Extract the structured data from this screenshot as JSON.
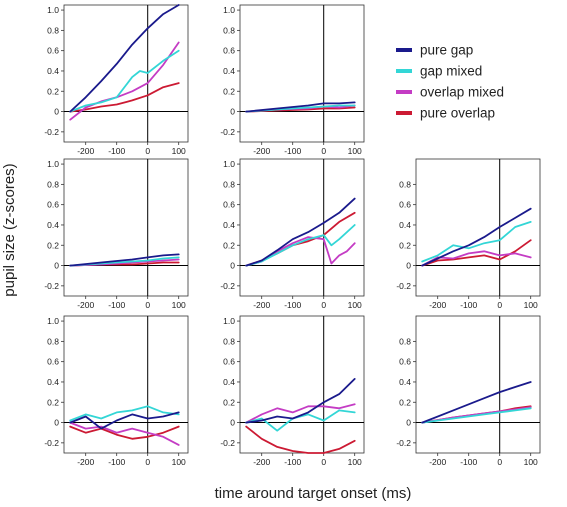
{
  "figure": {
    "ylabel": "pupil size (z-scores)",
    "xlabel": "time around target onset (ms)"
  },
  "legend": [
    {
      "name": "pure gap",
      "color": "#1a1a8c"
    },
    {
      "name": "gap mixed",
      "color": "#33d6d6"
    },
    {
      "name": "overlap mixed",
      "color": "#c43cc4"
    },
    {
      "name": "pure overlap",
      "color": "#cc1a33"
    }
  ],
  "chart_data": [
    {
      "type": "line",
      "panel": "row1-col1",
      "xlim": [
        -270,
        130
      ],
      "ylim": [
        -0.3,
        1.05
      ],
      "xticks": [
        -200,
        -100,
        0,
        100
      ],
      "yticks": [
        -0.2,
        0,
        0.2,
        0.4,
        0.6,
        0.8,
        1.0
      ],
      "series": [
        {
          "name": "pure gap",
          "x": [
            -250,
            -200,
            -150,
            -100,
            -50,
            0,
            50,
            100
          ],
          "y": [
            0.0,
            0.14,
            0.3,
            0.47,
            0.66,
            0.82,
            0.96,
            1.05
          ]
        },
        {
          "name": "gap mixed",
          "x": [
            -250,
            -200,
            -150,
            -100,
            -50,
            -25,
            0,
            50,
            100
          ],
          "y": [
            0.0,
            0.06,
            0.09,
            0.14,
            0.34,
            0.4,
            0.38,
            0.5,
            0.6
          ]
        },
        {
          "name": "overlap mixed",
          "x": [
            -250,
            -200,
            -150,
            -100,
            -50,
            0,
            50,
            100
          ],
          "y": [
            -0.08,
            0.04,
            0.1,
            0.14,
            0.2,
            0.28,
            0.46,
            0.68
          ]
        },
        {
          "name": "pure overlap",
          "x": [
            -250,
            -200,
            -150,
            -100,
            -50,
            0,
            50,
            100
          ],
          "y": [
            0.0,
            0.02,
            0.05,
            0.07,
            0.11,
            0.16,
            0.24,
            0.28
          ]
        }
      ]
    },
    {
      "type": "line",
      "panel": "row1-col2",
      "xlim": [
        -270,
        130
      ],
      "ylim": [
        -0.3,
        1.05
      ],
      "xticks": [
        -200,
        -100,
        0,
        100
      ],
      "yticks": [
        -0.2,
        0,
        0.2,
        0.4,
        0.6,
        0.8,
        1.0
      ],
      "series": [
        {
          "name": "pure gap",
          "x": [
            -250,
            -150,
            -50,
            0,
            50,
            100
          ],
          "y": [
            0.0,
            0.03,
            0.06,
            0.08,
            0.08,
            0.09
          ]
        },
        {
          "name": "gap mixed",
          "x": [
            -250,
            -150,
            -50,
            0,
            50,
            100
          ],
          "y": [
            0.0,
            0.02,
            0.04,
            0.05,
            0.06,
            0.06
          ]
        },
        {
          "name": "overlap mixed",
          "x": [
            -250,
            -150,
            -50,
            0,
            50,
            100
          ],
          "y": [
            0.0,
            0.02,
            0.03,
            0.05,
            0.04,
            0.06
          ]
        },
        {
          "name": "pure overlap",
          "x": [
            -250,
            -150,
            -50,
            0,
            50,
            100
          ],
          "y": [
            0.0,
            0.01,
            0.02,
            0.03,
            0.03,
            0.04
          ]
        }
      ]
    },
    {
      "type": "line",
      "panel": "row2-col1",
      "xlim": [
        -270,
        130
      ],
      "ylim": [
        -0.3,
        1.05
      ],
      "xticks": [
        -200,
        -100,
        0,
        100
      ],
      "yticks": [
        -0.2,
        0,
        0.2,
        0.4,
        0.6,
        0.8,
        1.0
      ],
      "series": [
        {
          "name": "pure gap",
          "x": [
            -250,
            -150,
            -50,
            0,
            50,
            100
          ],
          "y": [
            0.0,
            0.03,
            0.06,
            0.08,
            0.1,
            0.11
          ]
        },
        {
          "name": "gap mixed",
          "x": [
            -250,
            -150,
            -50,
            0,
            50,
            100
          ],
          "y": [
            0.0,
            0.02,
            0.04,
            0.05,
            0.07,
            0.08
          ]
        },
        {
          "name": "overlap mixed",
          "x": [
            -250,
            -150,
            -50,
            0,
            50,
            100
          ],
          "y": [
            0.0,
            0.01,
            0.03,
            0.04,
            0.05,
            0.06
          ]
        },
        {
          "name": "pure overlap",
          "x": [
            -250,
            -150,
            -50,
            0,
            50,
            100
          ],
          "y": [
            0.0,
            0.01,
            0.01,
            0.02,
            0.03,
            0.03
          ]
        }
      ]
    },
    {
      "type": "line",
      "panel": "row2-col2",
      "xlim": [
        -270,
        130
      ],
      "ylim": [
        -0.3,
        1.05
      ],
      "xticks": [
        -200,
        -100,
        0,
        100
      ],
      "yticks": [
        -0.2,
        0,
        0.2,
        0.4,
        0.6,
        0.8,
        1.0
      ],
      "series": [
        {
          "name": "pure gap",
          "x": [
            -250,
            -200,
            -150,
            -100,
            -50,
            0,
            50,
            100
          ],
          "y": [
            0.0,
            0.05,
            0.15,
            0.26,
            0.33,
            0.42,
            0.52,
            0.66
          ]
        },
        {
          "name": "gap mixed",
          "x": [
            -250,
            -200,
            -150,
            -100,
            -50,
            0,
            25,
            50,
            100
          ],
          "y": [
            0.0,
            0.04,
            0.12,
            0.2,
            0.26,
            0.3,
            0.2,
            0.26,
            0.4
          ]
        },
        {
          "name": "overlap mixed",
          "x": [
            -250,
            -200,
            -150,
            -100,
            -50,
            0,
            25,
            50,
            75,
            100
          ],
          "y": [
            0.0,
            0.04,
            0.14,
            0.22,
            0.28,
            0.26,
            0.02,
            0.1,
            0.14,
            0.22
          ]
        },
        {
          "name": "pure overlap",
          "x": [
            -250,
            -200,
            -150,
            -100,
            -50,
            0,
            50,
            100
          ],
          "y": [
            0.0,
            0.05,
            0.12,
            0.2,
            0.24,
            0.3,
            0.43,
            0.52
          ]
        }
      ]
    },
    {
      "type": "line",
      "panel": "row2-col3",
      "xlim": [
        -270,
        130
      ],
      "ylim": [
        -0.3,
        1.05
      ],
      "xticks": [
        -200,
        -100,
        0,
        100
      ],
      "yticks": [
        -0.2,
        0,
        0.2,
        0.4,
        0.6,
        0.8
      ],
      "series": [
        {
          "name": "pure gap",
          "x": [
            -250,
            -200,
            -150,
            -100,
            -50,
            0,
            50,
            100
          ],
          "y": [
            0.0,
            0.07,
            0.14,
            0.2,
            0.28,
            0.38,
            0.47,
            0.56
          ]
        },
        {
          "name": "gap mixed",
          "x": [
            -250,
            -200,
            -150,
            -100,
            -50,
            0,
            50,
            100
          ],
          "y": [
            0.04,
            0.1,
            0.2,
            0.17,
            0.22,
            0.25,
            0.38,
            0.43
          ]
        },
        {
          "name": "overlap mixed",
          "x": [
            -250,
            -200,
            -150,
            -100,
            -50,
            0,
            50,
            100
          ],
          "y": [
            0.0,
            0.08,
            0.07,
            0.12,
            0.14,
            0.1,
            0.12,
            0.08
          ]
        },
        {
          "name": "pure overlap",
          "x": [
            -250,
            -200,
            -150,
            -100,
            -50,
            0,
            50,
            100
          ],
          "y": [
            0.0,
            0.05,
            0.06,
            0.08,
            0.1,
            0.06,
            0.14,
            0.25
          ]
        }
      ]
    },
    {
      "type": "line",
      "panel": "row3-col1",
      "xlim": [
        -270,
        130
      ],
      "ylim": [
        -0.3,
        1.05
      ],
      "xticks": [
        -200,
        -100,
        0,
        100
      ],
      "yticks": [
        -0.2,
        0,
        0.2,
        0.4,
        0.6,
        0.8,
        1.0
      ],
      "series": [
        {
          "name": "pure gap",
          "x": [
            -250,
            -200,
            -150,
            -100,
            -50,
            0,
            50,
            100
          ],
          "y": [
            0.0,
            0.06,
            -0.06,
            0.02,
            0.08,
            0.04,
            0.06,
            0.1
          ]
        },
        {
          "name": "gap mixed",
          "x": [
            -250,
            -200,
            -150,
            -100,
            -50,
            0,
            50,
            100
          ],
          "y": [
            0.02,
            0.08,
            0.04,
            0.1,
            0.12,
            0.16,
            0.1,
            0.08
          ]
        },
        {
          "name": "overlap mixed",
          "x": [
            -250,
            -200,
            -150,
            -100,
            -50,
            0,
            50,
            100
          ],
          "y": [
            0.0,
            -0.06,
            -0.04,
            -0.1,
            -0.06,
            -0.1,
            -0.14,
            -0.22
          ]
        },
        {
          "name": "pure overlap",
          "x": [
            -250,
            -200,
            -150,
            -100,
            -50,
            0,
            50,
            100
          ],
          "y": [
            -0.04,
            -0.1,
            -0.06,
            -0.12,
            -0.16,
            -0.14,
            -0.1,
            -0.04
          ]
        }
      ]
    },
    {
      "type": "line",
      "panel": "row3-col2",
      "xlim": [
        -270,
        130
      ],
      "ylim": [
        -0.3,
        1.05
      ],
      "xticks": [
        -200,
        -100,
        0,
        100
      ],
      "yticks": [
        -0.2,
        0,
        0.2,
        0.4,
        0.6,
        0.8,
        1.0
      ],
      "series": [
        {
          "name": "pure gap",
          "x": [
            -250,
            -200,
            -150,
            -100,
            -50,
            0,
            50,
            100
          ],
          "y": [
            0.0,
            0.02,
            0.06,
            0.04,
            0.1,
            0.2,
            0.28,
            0.43
          ]
        },
        {
          "name": "gap mixed",
          "x": [
            -250,
            -200,
            -150,
            -100,
            -50,
            0,
            50,
            100
          ],
          "y": [
            0.0,
            0.04,
            -0.08,
            0.04,
            0.08,
            0.02,
            0.12,
            0.1
          ]
        },
        {
          "name": "overlap mixed",
          "x": [
            -250,
            -200,
            -150,
            -100,
            -50,
            0,
            50,
            100
          ],
          "y": [
            0.0,
            0.08,
            0.14,
            0.1,
            0.16,
            0.16,
            0.14,
            0.18
          ]
        },
        {
          "name": "pure overlap",
          "x": [
            -250,
            -200,
            -150,
            -100,
            -50,
            0,
            50,
            100
          ],
          "y": [
            -0.04,
            -0.16,
            -0.24,
            -0.28,
            -0.3,
            -0.32,
            -0.26,
            -0.18
          ]
        }
      ]
    },
    {
      "type": "line",
      "panel": "row3-col3",
      "xlim": [
        -270,
        130
      ],
      "ylim": [
        -0.3,
        1.05
      ],
      "xticks": [
        -200,
        -100,
        0,
        100
      ],
      "yticks": [
        -0.2,
        0,
        0.2,
        0.4,
        0.6,
        0.8
      ],
      "series": [
        {
          "name": "pure gap",
          "x": [
            -250,
            -150,
            -50,
            0,
            50,
            100
          ],
          "y": [
            0.0,
            0.12,
            0.24,
            0.3,
            0.35,
            0.4
          ]
        },
        {
          "name": "gap mixed",
          "x": [
            -250,
            -150,
            -50,
            0,
            50,
            100
          ],
          "y": [
            0.0,
            0.04,
            0.08,
            0.1,
            0.12,
            0.14
          ]
        },
        {
          "name": "overlap mixed",
          "x": [
            -250,
            -150,
            -50,
            0,
            50,
            100
          ],
          "y": [
            0.0,
            0.05,
            0.09,
            0.11,
            0.13,
            0.15
          ]
        },
        {
          "name": "pure overlap",
          "x": [
            -250,
            -150,
            -50,
            0,
            50,
            100
          ],
          "y": [
            0.0,
            0.05,
            0.09,
            0.11,
            0.14,
            0.16
          ]
        }
      ]
    }
  ]
}
